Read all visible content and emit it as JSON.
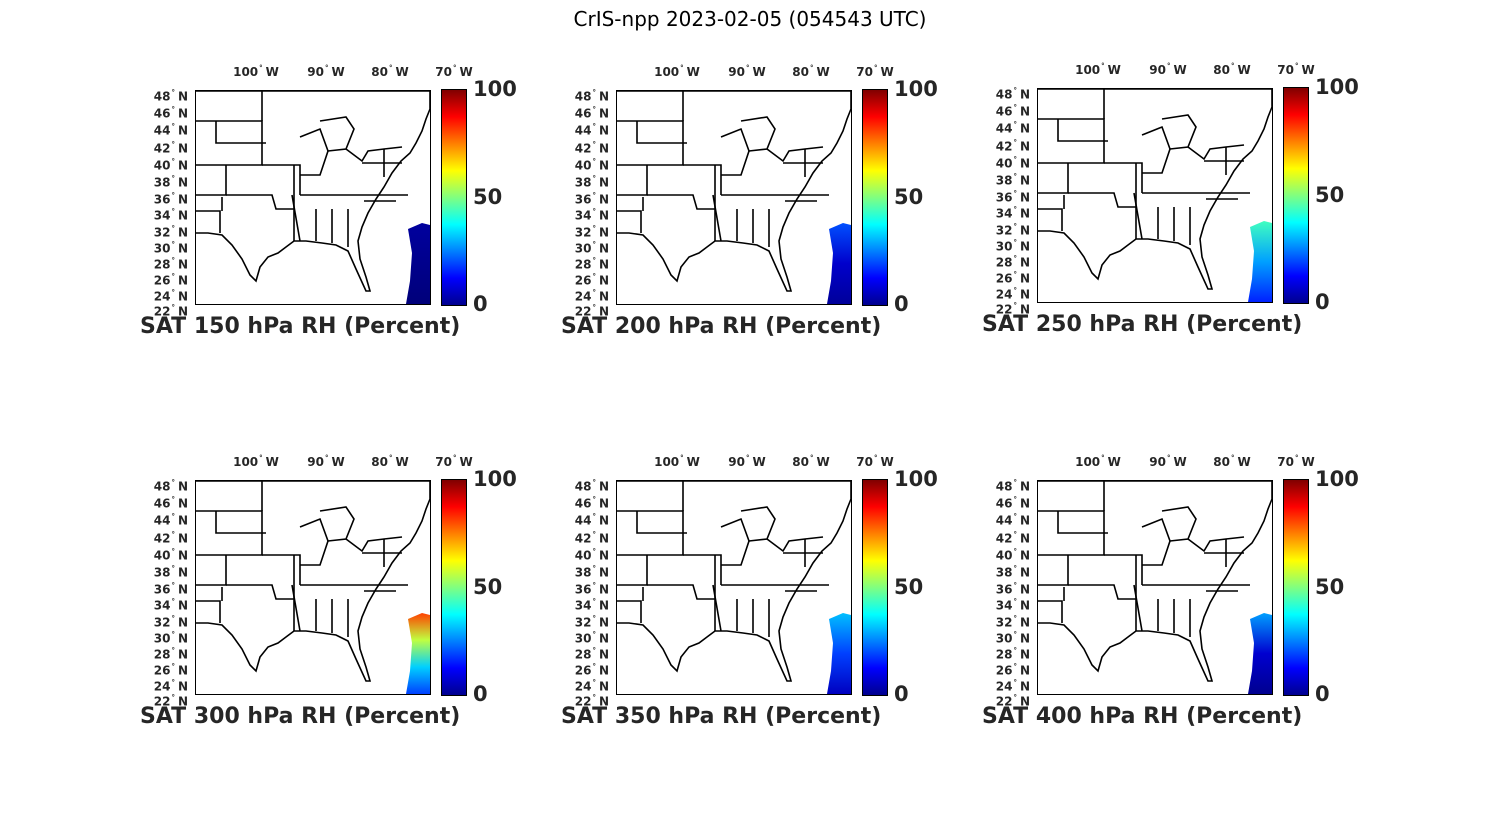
{
  "figure_title": "CrIS-npp 2023-02-05 (054543 UTC)",
  "lon_ticks": [
    "100",
    "90",
    "80",
    "70"
  ],
  "lon_suffix": "W",
  "lat_ticks": [
    "48",
    "46",
    "44",
    "42",
    "40",
    "38",
    "36",
    "34",
    "32",
    "30",
    "28",
    "26",
    "24",
    "22"
  ],
  "lat_suffix": "N",
  "degree_mark": "°",
  "colorbar": {
    "ticks": [
      "100",
      "50",
      "0"
    ],
    "range": [
      0,
      100
    ],
    "colormap": [
      "#00008f",
      "#0000ff",
      "#0080ff",
      "#00ffff",
      "#80ff80",
      "#ffff00",
      "#ff8000",
      "#ff0000",
      "#800000"
    ]
  },
  "panels": [
    {
      "title": "SAT 150 hPa RH (Percent)",
      "swath_colors": [
        "#00007a",
        "#00009e"
      ]
    },
    {
      "title": "SAT 200 hPa RH (Percent)",
      "swath_colors": [
        "#00009a",
        "#0000cc",
        "#0050ff"
      ]
    },
    {
      "title": "SAT 250 hPa RH (Percent)",
      "swath_colors": [
        "#0020ff",
        "#00a0ff",
        "#40ffc0"
      ]
    },
    {
      "title": "SAT 300 hPa RH (Percent)",
      "swath_colors": [
        "#0040ff",
        "#00d0ff",
        "#c0ff40",
        "#ff4000"
      ]
    },
    {
      "title": "SAT 350 hPa RH (Percent)",
      "swath_colors": [
        "#0000c0",
        "#0040ff",
        "#00c0ff"
      ]
    },
    {
      "title": "SAT 400 hPa RH (Percent)",
      "swath_colors": [
        "#00008f",
        "#0000d0",
        "#00a0ff"
      ]
    }
  ]
}
